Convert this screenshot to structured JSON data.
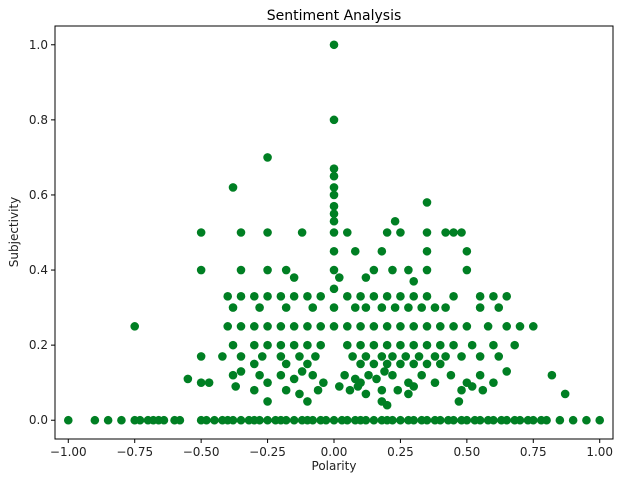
{
  "chart_data": {
    "type": "scatter",
    "title": "Sentiment Analysis",
    "xlabel": "Polarity",
    "ylabel": "Subjectivity",
    "xlim": [
      -1.05,
      1.05
    ],
    "ylim": [
      -0.05,
      1.05
    ],
    "x_ticks": [
      -1.0,
      -0.75,
      -0.5,
      -0.25,
      0.0,
      0.25,
      0.5,
      0.75,
      1.0
    ],
    "x_tick_labels": [
      "−1.00",
      "−0.75",
      "−0.50",
      "−0.25",
      "0.00",
      "0.25",
      "0.50",
      "0.75",
      "1.00"
    ],
    "y_ticks": [
      0.0,
      0.2,
      0.4,
      0.6,
      0.8,
      1.0
    ],
    "y_tick_labels": [
      "0.0",
      "0.2",
      "0.4",
      "0.6",
      "0.8",
      "1.0"
    ],
    "grid": false,
    "marker_color": "#007f23",
    "points": [
      [
        -1.0,
        0.0
      ],
      [
        -0.9,
        0.0
      ],
      [
        -0.85,
        0.0
      ],
      [
        -0.8,
        0.0
      ],
      [
        -0.75,
        0.0
      ],
      [
        -0.73,
        0.0
      ],
      [
        -0.7,
        0.0
      ],
      [
        -0.68,
        0.0
      ],
      [
        -0.66,
        0.0
      ],
      [
        -0.64,
        0.0
      ],
      [
        -0.6,
        0.0
      ],
      [
        -0.58,
        0.0
      ],
      [
        -0.5,
        0.0
      ],
      [
        -0.48,
        0.0
      ],
      [
        -0.45,
        0.0
      ],
      [
        -0.42,
        0.0
      ],
      [
        -0.4,
        0.0
      ],
      [
        -0.38,
        0.0
      ],
      [
        -0.35,
        0.0
      ],
      [
        -0.32,
        0.0
      ],
      [
        -0.3,
        0.0
      ],
      [
        -0.28,
        0.0
      ],
      [
        -0.25,
        0.0
      ],
      [
        -0.22,
        0.0
      ],
      [
        -0.2,
        0.0
      ],
      [
        -0.18,
        0.0
      ],
      [
        -0.15,
        0.0
      ],
      [
        -0.12,
        0.0
      ],
      [
        -0.1,
        0.0
      ],
      [
        -0.08,
        0.0
      ],
      [
        -0.05,
        0.0
      ],
      [
        -0.03,
        0.0
      ],
      [
        0.0,
        0.0
      ],
      [
        0.03,
        0.0
      ],
      [
        0.05,
        0.0
      ],
      [
        0.08,
        0.0
      ],
      [
        0.1,
        0.0
      ],
      [
        0.12,
        0.0
      ],
      [
        0.15,
        0.0
      ],
      [
        0.18,
        0.0
      ],
      [
        0.2,
        0.0
      ],
      [
        0.22,
        0.0
      ],
      [
        0.25,
        0.0
      ],
      [
        0.28,
        0.0
      ],
      [
        0.3,
        0.0
      ],
      [
        0.33,
        0.0
      ],
      [
        0.35,
        0.0
      ],
      [
        0.38,
        0.0
      ],
      [
        0.4,
        0.0
      ],
      [
        0.43,
        0.0
      ],
      [
        0.45,
        0.0
      ],
      [
        0.48,
        0.0
      ],
      [
        0.5,
        0.0
      ],
      [
        0.53,
        0.0
      ],
      [
        0.55,
        0.0
      ],
      [
        0.58,
        0.0
      ],
      [
        0.6,
        0.0
      ],
      [
        0.63,
        0.0
      ],
      [
        0.65,
        0.0
      ],
      [
        0.68,
        0.0
      ],
      [
        0.7,
        0.0
      ],
      [
        0.73,
        0.0
      ],
      [
        0.75,
        0.0
      ],
      [
        0.78,
        0.0
      ],
      [
        0.8,
        0.0
      ],
      [
        0.85,
        0.0
      ],
      [
        0.9,
        0.0
      ],
      [
        0.95,
        0.0
      ],
      [
        1.0,
        0.0
      ],
      [
        0.0,
        1.0
      ],
      [
        0.0,
        0.8
      ],
      [
        0.0,
        0.67
      ],
      [
        0.0,
        0.65
      ],
      [
        0.0,
        0.62
      ],
      [
        0.0,
        0.6
      ],
      [
        0.0,
        0.57
      ],
      [
        0.0,
        0.55
      ],
      [
        0.0,
        0.53
      ],
      [
        0.0,
        0.5
      ],
      [
        0.0,
        0.45
      ],
      [
        0.0,
        0.4
      ],
      [
        0.0,
        0.35
      ],
      [
        0.0,
        0.3
      ],
      [
        0.0,
        0.25
      ],
      [
        -0.25,
        0.7
      ],
      [
        -0.38,
        0.62
      ],
      [
        0.35,
        0.58
      ],
      [
        0.23,
        0.53
      ],
      [
        0.2,
        0.5
      ],
      [
        0.25,
        0.5
      ],
      [
        0.35,
        0.5
      ],
      [
        0.45,
        0.5
      ],
      [
        0.48,
        0.5
      ],
      [
        0.42,
        0.5
      ],
      [
        -0.5,
        0.5
      ],
      [
        -0.35,
        0.5
      ],
      [
        -0.25,
        0.5
      ],
      [
        -0.12,
        0.5
      ],
      [
        0.05,
        0.5
      ],
      [
        0.08,
        0.45
      ],
      [
        0.18,
        0.45
      ],
      [
        0.35,
        0.45
      ],
      [
        0.5,
        0.45
      ],
      [
        -0.5,
        0.4
      ],
      [
        -0.35,
        0.4
      ],
      [
        -0.25,
        0.4
      ],
      [
        -0.18,
        0.4
      ],
      [
        0.15,
        0.4
      ],
      [
        0.22,
        0.4
      ],
      [
        0.28,
        0.4
      ],
      [
        0.35,
        0.4
      ],
      [
        0.5,
        0.4
      ],
      [
        -0.15,
        0.38
      ],
      [
        0.02,
        0.38
      ],
      [
        0.12,
        0.38
      ],
      [
        0.3,
        0.37
      ],
      [
        -0.4,
        0.33
      ],
      [
        -0.35,
        0.33
      ],
      [
        -0.3,
        0.33
      ],
      [
        -0.25,
        0.33
      ],
      [
        -0.2,
        0.33
      ],
      [
        -0.15,
        0.33
      ],
      [
        -0.1,
        0.33
      ],
      [
        -0.05,
        0.33
      ],
      [
        0.05,
        0.33
      ],
      [
        0.1,
        0.33
      ],
      [
        0.15,
        0.33
      ],
      [
        0.2,
        0.33
      ],
      [
        0.25,
        0.33
      ],
      [
        0.3,
        0.33
      ],
      [
        0.35,
        0.33
      ],
      [
        0.45,
        0.33
      ],
      [
        0.55,
        0.33
      ],
      [
        0.6,
        0.33
      ],
      [
        0.65,
        0.33
      ],
      [
        -0.38,
        0.3
      ],
      [
        -0.28,
        0.3
      ],
      [
        -0.18,
        0.3
      ],
      [
        -0.08,
        0.3
      ],
      [
        0.08,
        0.3
      ],
      [
        0.12,
        0.3
      ],
      [
        0.18,
        0.3
      ],
      [
        0.23,
        0.3
      ],
      [
        0.28,
        0.3
      ],
      [
        0.33,
        0.3
      ],
      [
        0.38,
        0.3
      ],
      [
        0.42,
        0.3
      ],
      [
        0.55,
        0.3
      ],
      [
        0.62,
        0.3
      ],
      [
        -0.75,
        0.25
      ],
      [
        -0.4,
        0.25
      ],
      [
        -0.35,
        0.25
      ],
      [
        -0.3,
        0.25
      ],
      [
        -0.25,
        0.25
      ],
      [
        -0.2,
        0.25
      ],
      [
        -0.15,
        0.25
      ],
      [
        -0.1,
        0.25
      ],
      [
        -0.05,
        0.25
      ],
      [
        0.05,
        0.25
      ],
      [
        0.1,
        0.25
      ],
      [
        0.15,
        0.25
      ],
      [
        0.2,
        0.25
      ],
      [
        0.25,
        0.25
      ],
      [
        0.3,
        0.25
      ],
      [
        0.35,
        0.25
      ],
      [
        0.4,
        0.25
      ],
      [
        0.45,
        0.25
      ],
      [
        0.5,
        0.25
      ],
      [
        0.58,
        0.25
      ],
      [
        0.65,
        0.25
      ],
      [
        0.7,
        0.25
      ],
      [
        0.75,
        0.25
      ],
      [
        -0.38,
        0.2
      ],
      [
        -0.3,
        0.2
      ],
      [
        -0.25,
        0.2
      ],
      [
        -0.2,
        0.2
      ],
      [
        -0.15,
        0.2
      ],
      [
        -0.1,
        0.2
      ],
      [
        -0.05,
        0.2
      ],
      [
        0.05,
        0.2
      ],
      [
        0.1,
        0.2
      ],
      [
        0.15,
        0.2
      ],
      [
        0.2,
        0.2
      ],
      [
        0.25,
        0.2
      ],
      [
        0.3,
        0.2
      ],
      [
        0.35,
        0.2
      ],
      [
        0.4,
        0.2
      ],
      [
        0.45,
        0.2
      ],
      [
        0.52,
        0.2
      ],
      [
        0.6,
        0.2
      ],
      [
        0.68,
        0.2
      ],
      [
        -0.5,
        0.17
      ],
      [
        -0.42,
        0.17
      ],
      [
        -0.35,
        0.17
      ],
      [
        -0.27,
        0.17
      ],
      [
        -0.2,
        0.17
      ],
      [
        -0.13,
        0.17
      ],
      [
        -0.07,
        0.17
      ],
      [
        0.07,
        0.17
      ],
      [
        0.12,
        0.17
      ],
      [
        0.18,
        0.17
      ],
      [
        0.22,
        0.17
      ],
      [
        0.27,
        0.17
      ],
      [
        0.32,
        0.17
      ],
      [
        0.38,
        0.17
      ],
      [
        0.42,
        0.17
      ],
      [
        0.48,
        0.17
      ],
      [
        0.55,
        0.17
      ],
      [
        0.62,
        0.17
      ],
      [
        -0.3,
        0.15
      ],
      [
        -0.18,
        0.15
      ],
      [
        -0.1,
        0.15
      ],
      [
        0.1,
        0.15
      ],
      [
        0.15,
        0.15
      ],
      [
        0.2,
        0.15
      ],
      [
        0.25,
        0.15
      ],
      [
        0.3,
        0.15
      ],
      [
        0.35,
        0.15
      ],
      [
        0.4,
        0.15
      ],
      [
        -0.55,
        0.11
      ],
      [
        -0.5,
        0.1
      ],
      [
        -0.47,
        0.1
      ],
      [
        -0.38,
        0.12
      ],
      [
        -0.35,
        0.13
      ],
      [
        -0.28,
        0.12
      ],
      [
        -0.25,
        0.1
      ],
      [
        -0.2,
        0.12
      ],
      [
        -0.15,
        0.11
      ],
      [
        -0.12,
        0.13
      ],
      [
        -0.08,
        0.12
      ],
      [
        -0.04,
        0.1
      ],
      [
        0.04,
        0.12
      ],
      [
        0.08,
        0.11
      ],
      [
        0.1,
        0.1
      ],
      [
        0.13,
        0.12
      ],
      [
        0.16,
        0.11
      ],
      [
        0.19,
        0.13
      ],
      [
        0.22,
        0.12
      ],
      [
        0.28,
        0.1
      ],
      [
        0.33,
        0.12
      ],
      [
        0.38,
        0.1
      ],
      [
        0.44,
        0.12
      ],
      [
        0.5,
        0.1
      ],
      [
        0.55,
        0.12
      ],
      [
        0.6,
        0.1
      ],
      [
        0.65,
        0.13
      ],
      [
        0.82,
        0.12
      ],
      [
        -0.37,
        0.09
      ],
      [
        -0.3,
        0.08
      ],
      [
        -0.18,
        0.08
      ],
      [
        -0.13,
        0.07
      ],
      [
        -0.06,
        0.08
      ],
      [
        0.02,
        0.09
      ],
      [
        0.06,
        0.08
      ],
      [
        0.09,
        0.09
      ],
      [
        0.12,
        0.07
      ],
      [
        0.18,
        0.08
      ],
      [
        0.24,
        0.08
      ],
      [
        0.28,
        0.07
      ],
      [
        0.3,
        0.09
      ],
      [
        0.48,
        0.08
      ],
      [
        0.52,
        0.09
      ],
      [
        0.56,
        0.08
      ],
      [
        0.87,
        0.07
      ],
      [
        -0.25,
        0.05
      ],
      [
        -0.1,
        0.05
      ],
      [
        0.18,
        0.05
      ],
      [
        0.2,
        0.04
      ],
      [
        0.47,
        0.05
      ]
    ]
  }
}
